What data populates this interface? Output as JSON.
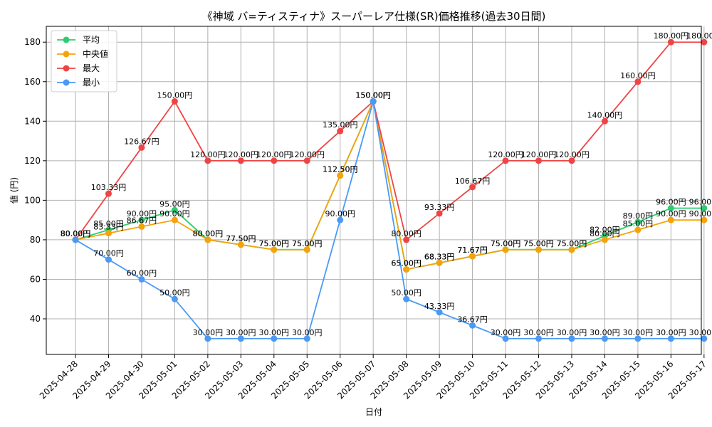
{
  "chart_data": {
    "type": "line",
    "title": "《神域 バ=ティスティナ》スーパーレア仕様(SR)価格推移(過去30日間)",
    "xlabel": "日付",
    "ylabel": "値 (円)",
    "ylim": [
      22,
      188
    ],
    "yticks": [
      40,
      60,
      80,
      100,
      120,
      140,
      160,
      180
    ],
    "grid": true,
    "legend_position": "top-left",
    "label_suffix": "円",
    "categories": [
      "2025-04-28",
      "2025-04-29",
      "2025-04-30",
      "2025-05-01",
      "2025-05-02",
      "2025-05-03",
      "2025-05-04",
      "2025-05-05",
      "2025-05-06",
      "2025-05-07",
      "2025-05-08",
      "2025-05-09",
      "2025-05-10",
      "2025-05-11",
      "2025-05-12",
      "2025-05-13",
      "2025-05-14",
      "2025-05-15",
      "2025-05-16",
      "2025-05-17"
    ],
    "series": [
      {
        "name": "平均",
        "color": "#2ecc71",
        "values": [
          80.0,
          85.0,
          90.0,
          95.0,
          80.0,
          77.5,
          75.0,
          75.0,
          112.5,
          150.0,
          65.0,
          68.33,
          71.67,
          75.0,
          75.0,
          75.0,
          82.0,
          89.0,
          96.0,
          96.0
        ]
      },
      {
        "name": "中央値",
        "color": "#f5a30a",
        "values": [
          80.0,
          83.33,
          86.67,
          90.0,
          80.0,
          77.5,
          75.0,
          75.0,
          112.5,
          150.0,
          65.0,
          68.33,
          71.67,
          75.0,
          75.0,
          75.0,
          80.0,
          85.0,
          90.0,
          90.0
        ]
      },
      {
        "name": "最大",
        "color": "#ef4444",
        "values": [
          80.0,
          103.33,
          126.67,
          150.0,
          120.0,
          120.0,
          120.0,
          120.0,
          135.0,
          150.0,
          80.0,
          93.33,
          106.67,
          120.0,
          120.0,
          120.0,
          140.0,
          160.0,
          180.0,
          180.0
        ]
      },
      {
        "name": "最小",
        "color": "#4a9af5",
        "values": [
          80.0,
          70.0,
          60.0,
          50.0,
          30.0,
          30.0,
          30.0,
          30.0,
          90.0,
          150.0,
          50.0,
          43.33,
          36.67,
          30.0,
          30.0,
          30.0,
          30.0,
          30.0,
          30.0,
          30.0
        ]
      }
    ]
  }
}
